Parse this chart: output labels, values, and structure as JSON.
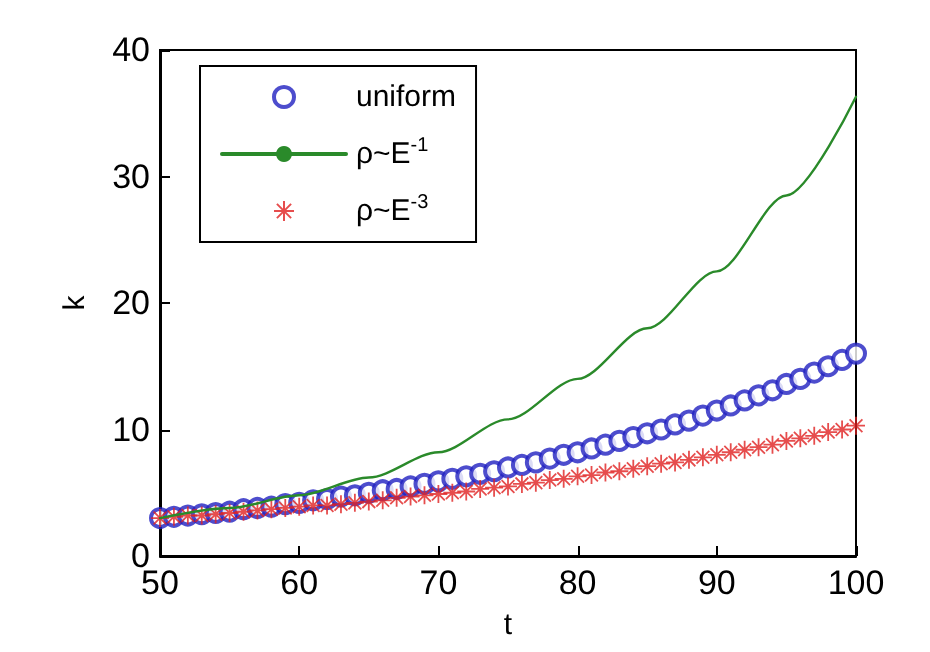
{
  "chart_data": {
    "type": "scatter",
    "xlabel": "t",
    "ylabel": "k",
    "xlim": [
      50,
      100
    ],
    "xticks": [
      50,
      60,
      70,
      80,
      90,
      100
    ],
    "ylim": [
      0,
      40
    ],
    "yticks": [
      0,
      10,
      20,
      30,
      40
    ],
    "grid": false,
    "legend": "top left",
    "series": [
      {
        "name": "uniform",
        "color": "#2020c0",
        "marker": "circle",
        "x": [
          50,
          51,
          52,
          53,
          54,
          55,
          56,
          57,
          58,
          59,
          60,
          61,
          62,
          63,
          64,
          65,
          66,
          67,
          68,
          69,
          70,
          71,
          72,
          73,
          74,
          75,
          76,
          77,
          78,
          79,
          80,
          81,
          82,
          83,
          84,
          85,
          86,
          87,
          88,
          89,
          90,
          91,
          92,
          93,
          94,
          95,
          96,
          97,
          98,
          99,
          100
        ],
        "values": [
          3.0,
          3.1,
          3.2,
          3.3,
          3.4,
          3.5,
          3.7,
          3.8,
          3.9,
          4.1,
          4.2,
          4.4,
          4.5,
          4.7,
          4.8,
          5.0,
          5.2,
          5.3,
          5.5,
          5.7,
          5.9,
          6.1,
          6.3,
          6.5,
          6.7,
          7.0,
          7.2,
          7.4,
          7.7,
          8.0,
          8.2,
          8.5,
          8.8,
          9.1,
          9.4,
          9.7,
          10.0,
          10.4,
          10.7,
          11.1,
          11.5,
          11.9,
          12.3,
          12.7,
          13.1,
          13.6,
          14.0,
          14.5,
          15.0,
          15.5,
          16.0
        ]
      },
      {
        "name": "ρ~E$^{-1}$",
        "type": "line",
        "color": "#2a8a2a",
        "marker": "none",
        "line_style": "solid",
        "x": [
          50,
          55,
          60,
          65,
          70,
          75,
          80,
          85,
          90,
          95,
          100
        ],
        "values": [
          3.0,
          3.8,
          4.8,
          6.2,
          8.2,
          10.8,
          14.0,
          18.0,
          22.5,
          28.5,
          36.3
        ]
      },
      {
        "name": "ρ~E$^{-3}$",
        "color": "#e02020",
        "marker": "star",
        "x": [
          50,
          51,
          52,
          53,
          54,
          55,
          56,
          57,
          58,
          59,
          60,
          61,
          62,
          63,
          64,
          65,
          66,
          67,
          68,
          69,
          70,
          71,
          72,
          73,
          74,
          75,
          76,
          77,
          78,
          79,
          80,
          81,
          82,
          83,
          84,
          85,
          86,
          87,
          88,
          89,
          90,
          91,
          92,
          93,
          94,
          95,
          96,
          97,
          98,
          99,
          100
        ],
        "values": [
          3.0,
          3.1,
          3.2,
          3.2,
          3.3,
          3.4,
          3.5,
          3.6,
          3.7,
          3.8,
          3.9,
          4.0,
          4.0,
          4.1,
          4.2,
          4.3,
          4.4,
          4.6,
          4.7,
          4.8,
          4.9,
          5.0,
          5.1,
          5.3,
          5.4,
          5.5,
          5.7,
          5.8,
          6.0,
          6.1,
          6.3,
          6.4,
          6.6,
          6.7,
          6.9,
          7.1,
          7.3,
          7.4,
          7.6,
          7.8,
          8.0,
          8.2,
          8.4,
          8.6,
          8.8,
          9.1,
          9.3,
          9.5,
          9.8,
          10.0,
          10.3
        ]
      }
    ]
  }
}
